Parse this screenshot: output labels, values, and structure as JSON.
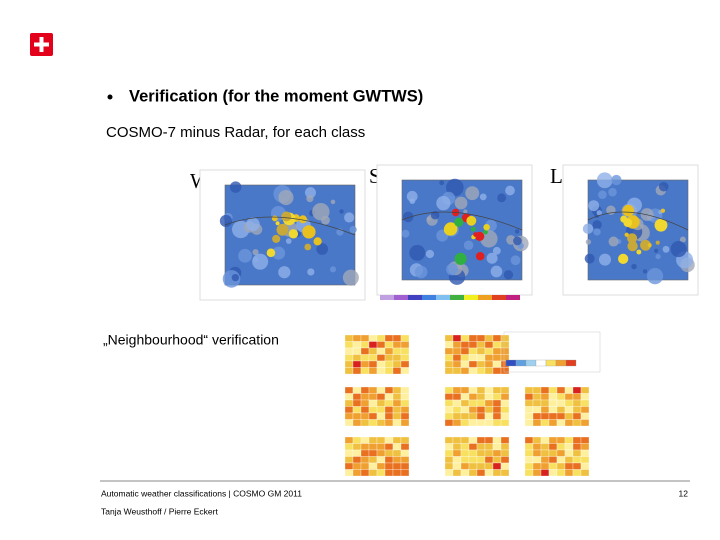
{
  "slide": {
    "bullet": "Verification (for the moment GWTWS)",
    "subtitle": "COSMO-7 minus Radar, for each class",
    "panels": [
      {
        "label": "W"
      },
      {
        "label": "SE"
      },
      {
        "label": "L"
      }
    ],
    "section": "„Neighbourhood“ verification"
  },
  "footer": {
    "event": "Automatic weather classifications | COSMO GM 2011",
    "authors": "Tanja Weusthoff / Pierre Eckert",
    "page": "12"
  }
}
